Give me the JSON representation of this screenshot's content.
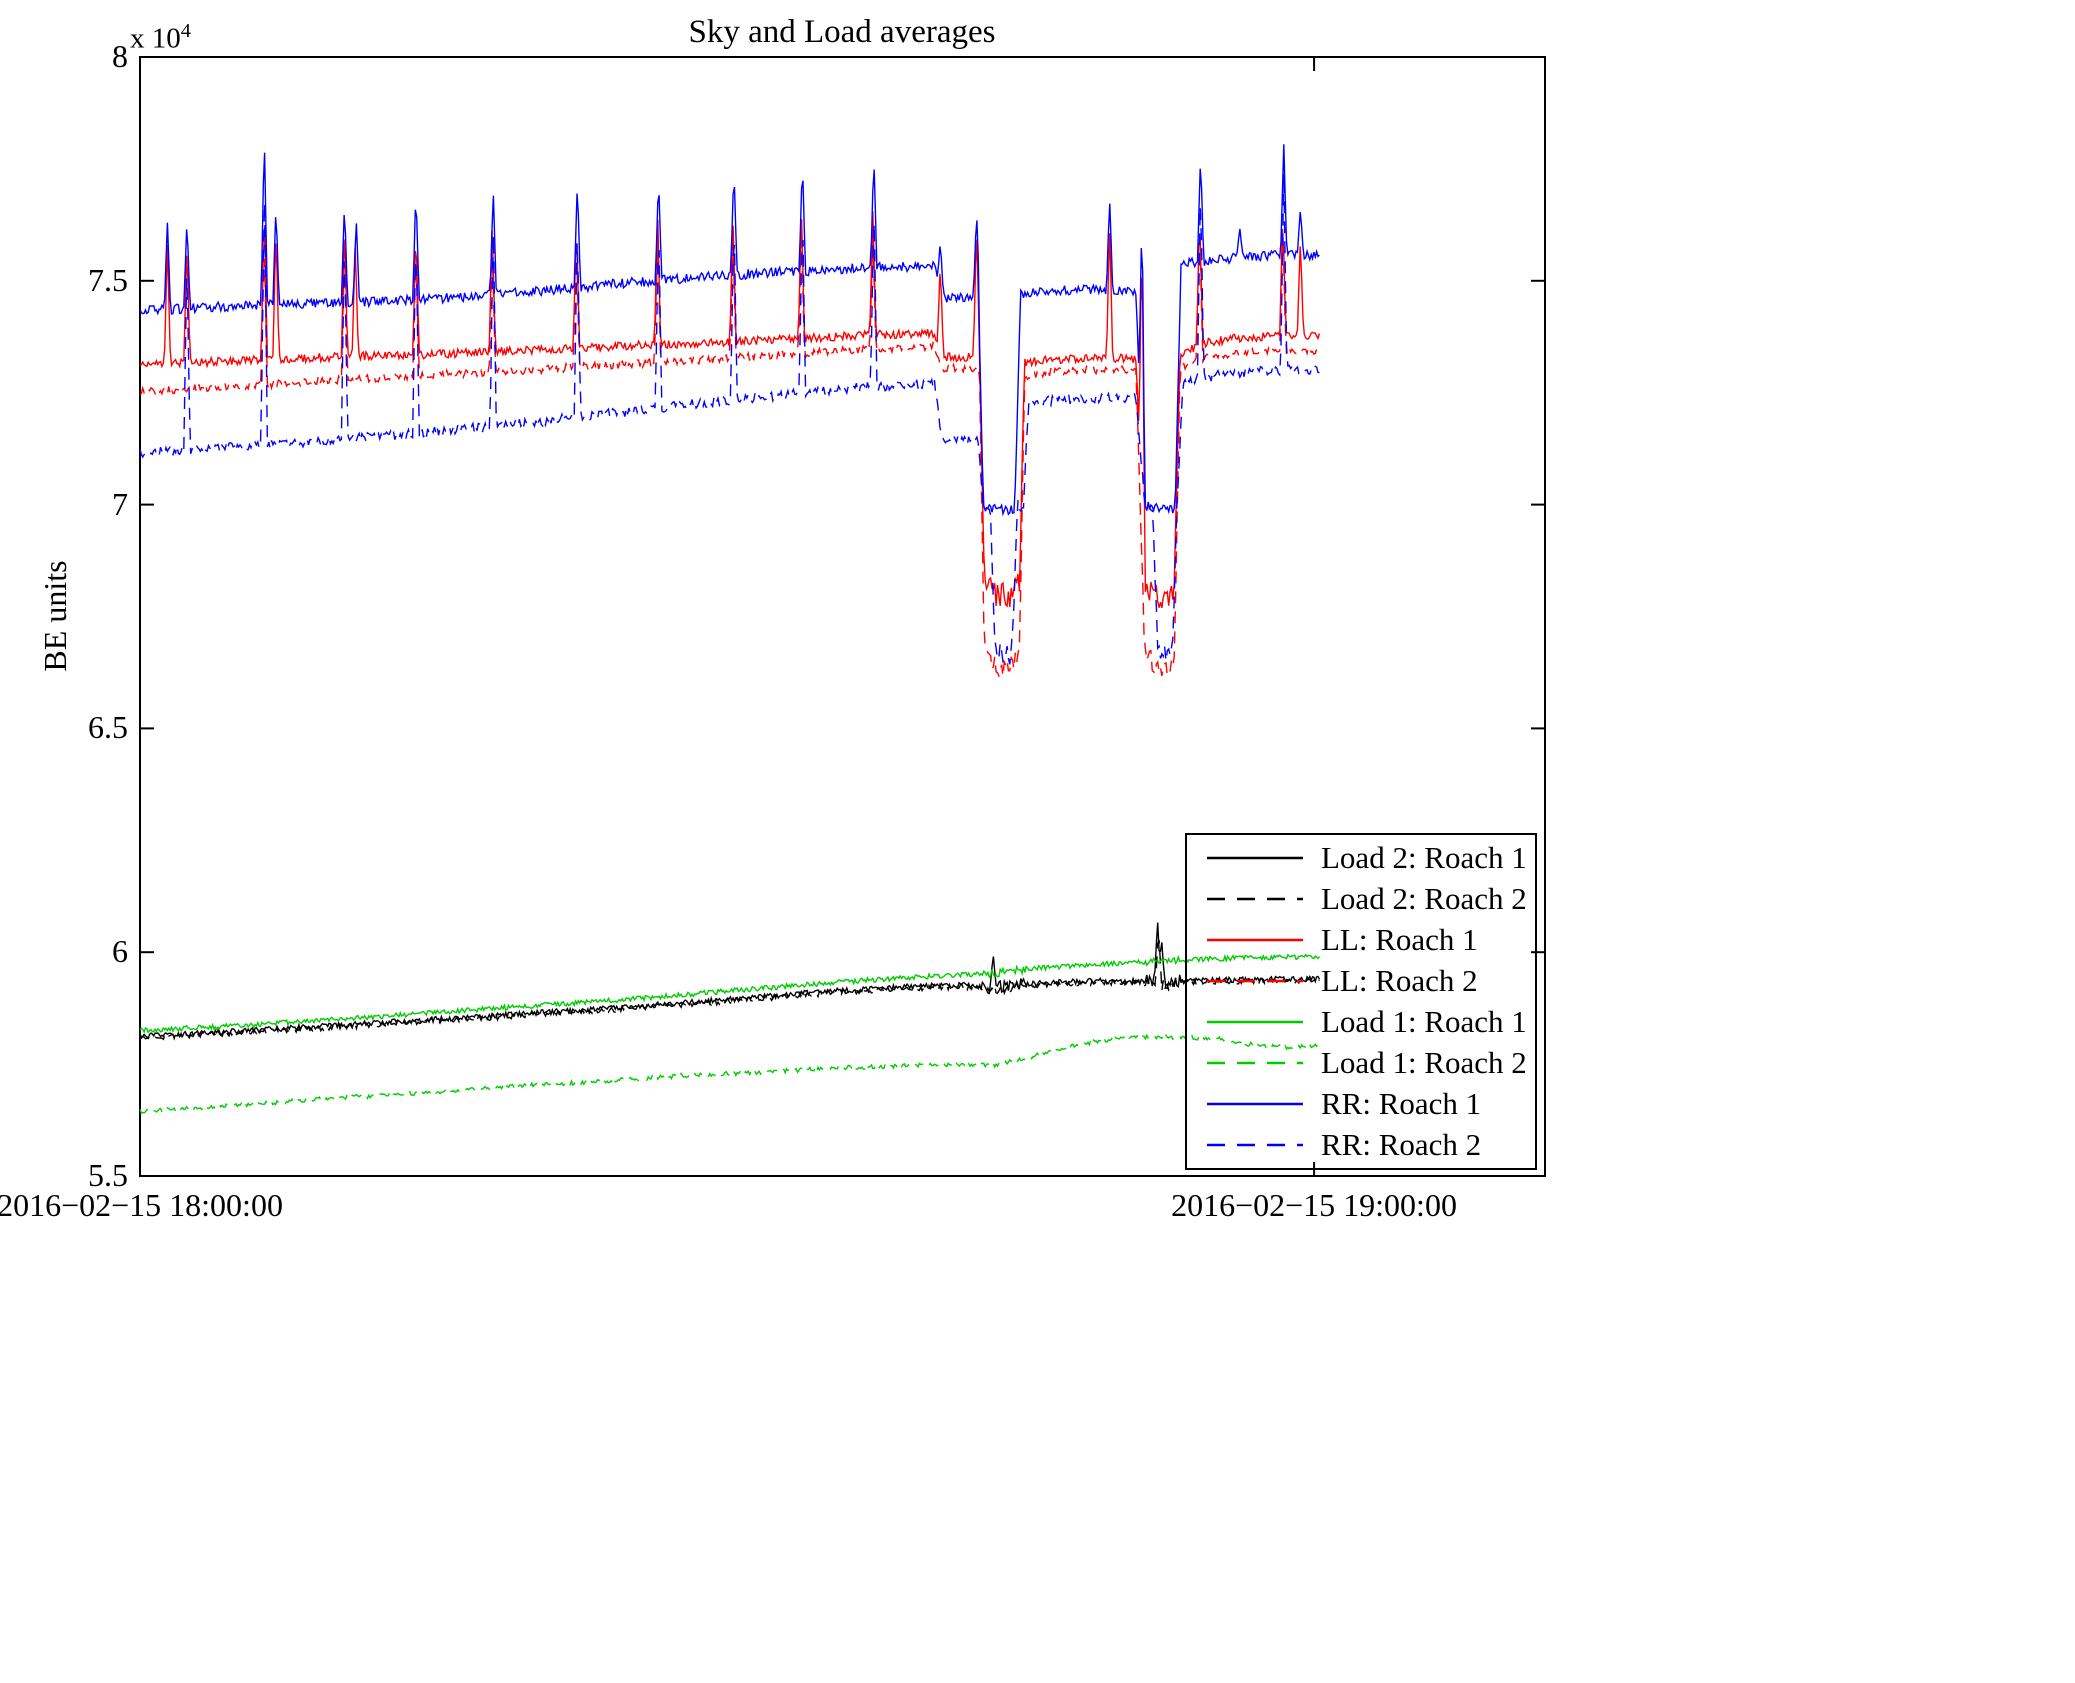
{
  "title": "Sky and Load averages",
  "ylabel": "BE units",
  "y_scale": {
    "mantissa": "x 10",
    "exponent": "4"
  },
  "axis": {
    "x_min": 0,
    "x_max": 71.8,
    "y_min": 55000,
    "y_max": 80000,
    "y_ticks": [
      {
        "v": 55000,
        "label": "5.5"
      },
      {
        "v": 60000,
        "label": "6"
      },
      {
        "v": 65000,
        "label": "6.5"
      },
      {
        "v": 70000,
        "label": "7"
      },
      {
        "v": 75000,
        "label": "7.5"
      },
      {
        "v": 80000,
        "label": "8"
      }
    ],
    "x_ticks": [
      {
        "t": 0,
        "label": "2016−02−15 18:00:00"
      },
      {
        "t": 60,
        "label": "2016−02−15 19:00:00"
      }
    ]
  },
  "chart_data": {
    "type": "line",
    "title": "Sky and Load averages",
    "xlabel": "",
    "ylabel": "BE units",
    "x_unit": "minutes after 2016-02-15 18:00:00",
    "y_unit": "BE units (labels shown as value x 10^4)",
    "t_end": 60.3,
    "t_step": 0.07,
    "grid": false,
    "legend_position": "lower right",
    "series": [
      {
        "name": "Load 2: Roach 1",
        "color": "#000000",
        "dash": false,
        "noise": 60,
        "keypoints": [
          [
            0,
            58120
          ],
          [
            6,
            58260
          ],
          [
            12,
            58420
          ],
          [
            18,
            58580
          ],
          [
            24,
            58750
          ],
          [
            30,
            58940
          ],
          [
            35,
            59120
          ],
          [
            39,
            59230
          ],
          [
            42,
            59270
          ],
          [
            43.5,
            59200
          ],
          [
            45,
            59290
          ],
          [
            47,
            59330
          ],
          [
            49,
            59360
          ],
          [
            51,
            59350
          ],
          [
            52.5,
            59300
          ],
          [
            53.5,
            59370
          ],
          [
            55,
            59380
          ],
          [
            57,
            59390
          ],
          [
            58.5,
            59400
          ],
          [
            60.3,
            59400
          ]
        ],
        "spikes": [
          [
            43.6,
            59950
          ],
          [
            52.0,
            60750
          ],
          [
            52.2,
            60350
          ]
        ],
        "extra_noise": [
          [
            43.0,
            45.2,
            130
          ],
          [
            51.4,
            53.2,
            160
          ]
        ]
      },
      {
        "name": "Load 2: Roach 2",
        "color": "#000000",
        "dash": true,
        "noise": 60,
        "keypoints": [
          [
            0,
            58080
          ],
          [
            6,
            58220
          ],
          [
            12,
            58380
          ],
          [
            18,
            58540
          ],
          [
            24,
            58710
          ],
          [
            30,
            58900
          ],
          [
            35,
            59080
          ],
          [
            39,
            59190
          ],
          [
            42,
            59230
          ],
          [
            43.5,
            59160
          ],
          [
            45,
            59250
          ],
          [
            47,
            59290
          ],
          [
            49,
            59320
          ],
          [
            51,
            59310
          ],
          [
            52.5,
            59260
          ],
          [
            53.5,
            59330
          ],
          [
            55,
            59350
          ],
          [
            57,
            59350
          ],
          [
            58.5,
            59360
          ],
          [
            60.3,
            59360
          ]
        ],
        "spikes": [
          [
            52.05,
            60500
          ]
        ],
        "extra_noise": [
          [
            43.0,
            45.2,
            120
          ],
          [
            51.4,
            53.2,
            140
          ]
        ]
      },
      {
        "name": "LL: Roach 1",
        "color": "#ff0000",
        "dash": false,
        "noise": 95,
        "keypoints": [
          [
            0,
            73120
          ],
          [
            5,
            73220
          ],
          [
            10,
            73300
          ],
          [
            15,
            73360
          ],
          [
            20,
            73450
          ],
          [
            25,
            73550
          ],
          [
            30,
            73640
          ],
          [
            34,
            73720
          ],
          [
            37,
            73790
          ],
          [
            40.6,
            73830
          ],
          [
            41.0,
            73300
          ],
          [
            42.9,
            73290
          ],
          [
            43.15,
            68250
          ],
          [
            43.8,
            67980
          ],
          [
            44.6,
            68000
          ],
          [
            44.95,
            68300
          ],
          [
            45.2,
            73180
          ],
          [
            46.5,
            73240
          ],
          [
            49,
            73270
          ],
          [
            50.9,
            73260
          ],
          [
            51.35,
            68150
          ],
          [
            52.0,
            67980
          ],
          [
            52.85,
            68020
          ],
          [
            53.15,
            73350
          ],
          [
            54.5,
            73620
          ],
          [
            56,
            73720
          ],
          [
            58,
            73770
          ],
          [
            60.3,
            73800
          ]
        ],
        "spikes": [
          [
            1.4,
            75800
          ],
          [
            2.4,
            75900
          ],
          [
            6.35,
            76600
          ],
          [
            6.95,
            76200
          ],
          [
            10.45,
            76300
          ],
          [
            11.0,
            75900
          ],
          [
            14.1,
            76200
          ],
          [
            18.0,
            76300
          ],
          [
            22.3,
            76350
          ],
          [
            26.45,
            76550
          ],
          [
            30.3,
            76400
          ],
          [
            33.8,
            76550
          ],
          [
            37.45,
            76550
          ],
          [
            40.9,
            75400
          ],
          [
            42.75,
            76300
          ],
          [
            49.55,
            76250
          ],
          [
            51.2,
            76200
          ],
          [
            54.15,
            76550
          ],
          [
            58.4,
            76500
          ],
          [
            59.3,
            75900
          ]
        ],
        "extra_noise": [
          [
            43.1,
            45.0,
            300
          ],
          [
            51.3,
            53.0,
            300
          ]
        ]
      },
      {
        "name": "LL: Roach 2",
        "color": "#ff0000",
        "dash": true,
        "noise": 90,
        "keypoints": [
          [
            0,
            72520
          ],
          [
            5,
            72650
          ],
          [
            10,
            72780
          ],
          [
            15,
            72890
          ],
          [
            20,
            73010
          ],
          [
            25,
            73140
          ],
          [
            30,
            73270
          ],
          [
            34,
            73380
          ],
          [
            37,
            73470
          ],
          [
            40.6,
            73540
          ],
          [
            41.0,
            73040
          ],
          [
            42.9,
            73030
          ],
          [
            43.15,
            66700
          ],
          [
            43.8,
            66350
          ],
          [
            44.6,
            66380
          ],
          [
            44.95,
            66700
          ],
          [
            45.2,
            72880
          ],
          [
            46.5,
            72960
          ],
          [
            49,
            73010
          ],
          [
            50.9,
            73000
          ],
          [
            51.35,
            66700
          ],
          [
            52.0,
            66350
          ],
          [
            52.85,
            66420
          ],
          [
            53.15,
            73080
          ],
          [
            54.5,
            73280
          ],
          [
            56,
            73380
          ],
          [
            58,
            73430
          ],
          [
            60.3,
            73450
          ]
        ],
        "spikes": [
          [
            6.35,
            75900
          ],
          [
            10.45,
            75700
          ],
          [
            14.1,
            75800
          ],
          [
            18.0,
            75900
          ],
          [
            22.3,
            75900
          ],
          [
            26.45,
            76000
          ],
          [
            30.3,
            76000
          ],
          [
            33.8,
            76100
          ],
          [
            37.45,
            76100
          ],
          [
            54.15,
            76200
          ],
          [
            58.4,
            76200
          ]
        ],
        "extra_noise": [
          [
            43.1,
            45.0,
            220
          ],
          [
            51.3,
            53.0,
            220
          ]
        ]
      },
      {
        "name": "Load 1: Roach 1",
        "color": "#00cc00",
        "dash": false,
        "noise": 55,
        "keypoints": [
          [
            0,
            58250
          ],
          [
            5,
            58360
          ],
          [
            10,
            58500
          ],
          [
            15,
            58650
          ],
          [
            20,
            58800
          ],
          [
            25,
            58950
          ],
          [
            30,
            59130
          ],
          [
            34,
            59270
          ],
          [
            37,
            59370
          ],
          [
            40,
            59450
          ],
          [
            42,
            59500
          ],
          [
            43.5,
            59520
          ],
          [
            45,
            59600
          ],
          [
            46,
            59650
          ],
          [
            48,
            59700
          ],
          [
            50,
            59750
          ],
          [
            52,
            59800
          ],
          [
            54,
            59840
          ],
          [
            56,
            59870
          ],
          [
            58,
            59890
          ],
          [
            60.3,
            59890
          ]
        ],
        "spikes": [],
        "extra_noise": [
          [
            43.0,
            45.3,
            90
          ],
          [
            51.4,
            53.2,
            80
          ]
        ]
      },
      {
        "name": "Load 1: Roach 2",
        "color": "#00cc00",
        "dash": true,
        "noise": 50,
        "keypoints": [
          [
            0,
            56450
          ],
          [
            4,
            56550
          ],
          [
            8,
            56680
          ],
          [
            12,
            56800
          ],
          [
            16,
            56900
          ],
          [
            20,
            57030
          ],
          [
            24,
            57130
          ],
          [
            28,
            57250
          ],
          [
            32,
            57330
          ],
          [
            36,
            57420
          ],
          [
            40,
            57480
          ],
          [
            42.5,
            57500
          ],
          [
            43.5,
            57470
          ],
          [
            45,
            57600
          ],
          [
            46.5,
            57780
          ],
          [
            48,
            57950
          ],
          [
            50,
            58080
          ],
          [
            52,
            58110
          ],
          [
            54,
            58090
          ],
          [
            55.5,
            58060
          ],
          [
            56.5,
            57950
          ],
          [
            57.5,
            57900
          ],
          [
            58.5,
            57880
          ],
          [
            60.3,
            57920
          ]
        ],
        "spikes": [],
        "extra_noise": []
      },
      {
        "name": "RR: Roach 1",
        "color": "#0000ff",
        "dash": false,
        "noise": 110,
        "keypoints": [
          [
            0,
            74330
          ],
          [
            4,
            74420
          ],
          [
            8,
            74480
          ],
          [
            12,
            74530
          ],
          [
            16,
            74620
          ],
          [
            20,
            74750
          ],
          [
            24,
            74920
          ],
          [
            28,
            75060
          ],
          [
            31,
            75150
          ],
          [
            34,
            75220
          ],
          [
            37,
            75290
          ],
          [
            40.6,
            75330
          ],
          [
            41.0,
            74620
          ],
          [
            42.85,
            74600
          ],
          [
            43.1,
            69950
          ],
          [
            44.7,
            69870
          ],
          [
            45.0,
            74700
          ],
          [
            46,
            74760
          ],
          [
            48,
            74800
          ],
          [
            50.9,
            74790
          ],
          [
            51.3,
            69980
          ],
          [
            52.9,
            69900
          ],
          [
            53.2,
            75380
          ],
          [
            55,
            75480
          ],
          [
            58,
            75560
          ],
          [
            60.3,
            75590
          ]
        ],
        "spikes": [
          [
            1.4,
            76300
          ],
          [
            2.4,
            76400
          ],
          [
            6.35,
            78350
          ],
          [
            6.95,
            76700
          ],
          [
            10.45,
            76750
          ],
          [
            11.05,
            76400
          ],
          [
            14.1,
            77050
          ],
          [
            18.05,
            77050
          ],
          [
            22.35,
            77250
          ],
          [
            26.5,
            77350
          ],
          [
            30.35,
            77550
          ],
          [
            33.85,
            77700
          ],
          [
            37.5,
            77800
          ],
          [
            40.9,
            75900
          ],
          [
            42.75,
            76600
          ],
          [
            49.55,
            76850
          ],
          [
            51.2,
            76700
          ],
          [
            54.2,
            77800
          ],
          [
            56.2,
            76200
          ],
          [
            58.45,
            78050
          ],
          [
            59.3,
            76600
          ]
        ],
        "extra_noise": []
      },
      {
        "name": "RR: Roach 2",
        "color": "#0000ff",
        "dash": true,
        "noise": 110,
        "keypoints": [
          [
            0,
            71150
          ],
          [
            5,
            71300
          ],
          [
            10,
            71450
          ],
          [
            15,
            71620
          ],
          [
            20,
            71830
          ],
          [
            25,
            72080
          ],
          [
            30,
            72330
          ],
          [
            34,
            72500
          ],
          [
            37,
            72620
          ],
          [
            40.6,
            72700
          ],
          [
            41.0,
            71450
          ],
          [
            42.85,
            71430
          ],
          [
            43.1,
            69950
          ],
          [
            43.45,
            69900
          ],
          [
            43.7,
            66750
          ],
          [
            44.55,
            66600
          ],
          [
            44.85,
            69950
          ],
          [
            45.15,
            69900
          ],
          [
            45.4,
            72250
          ],
          [
            47,
            72350
          ],
          [
            50.9,
            72400
          ],
          [
            51.35,
            69980
          ],
          [
            51.75,
            69930
          ],
          [
            52.0,
            66750
          ],
          [
            52.75,
            66650
          ],
          [
            53.0,
            70000
          ],
          [
            53.3,
            72750
          ],
          [
            54.5,
            72850
          ],
          [
            56,
            72950
          ],
          [
            58,
            73000
          ],
          [
            60.3,
            73020
          ]
        ],
        "spikes": [
          [
            2.4,
            75600
          ],
          [
            6.35,
            77500
          ],
          [
            10.45,
            76000
          ],
          [
            14.1,
            76300
          ],
          [
            18.05,
            76300
          ],
          [
            22.35,
            76400
          ],
          [
            26.5,
            76500
          ],
          [
            30.35,
            76600
          ],
          [
            33.85,
            76700
          ],
          [
            37.5,
            76800
          ],
          [
            54.2,
            77200
          ],
          [
            58.45,
            77400
          ]
        ],
        "extra_noise": [
          [
            43.5,
            45.0,
            200
          ],
          [
            51.8,
            53.0,
            200
          ]
        ]
      }
    ]
  }
}
